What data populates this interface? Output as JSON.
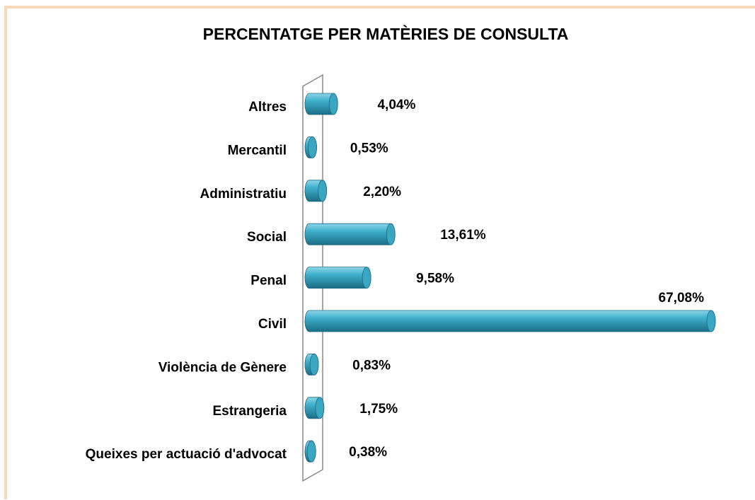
{
  "chart_data": {
    "type": "bar",
    "title": "PERCENTATGE PER MATÈRIES DE CONSULTA",
    "categories": [
      "Altres",
      "Mercantil",
      "Administratiu",
      "Social",
      "Penal",
      "Civil",
      "Violència de Gènere",
      "Estrangeria",
      "Queixes per actuació d'advocat"
    ],
    "values": [
      4.04,
      0.53,
      2.2,
      13.61,
      9.58,
      67.08,
      0.83,
      1.75,
      0.38
    ],
    "value_labels": [
      "4,04%",
      "0,53%",
      "2,20%",
      "13,61%",
      "9,58%",
      "67,08%",
      "0,83%",
      "1,75%",
      "0,38%"
    ],
    "color": "#3aa6c2"
  }
}
